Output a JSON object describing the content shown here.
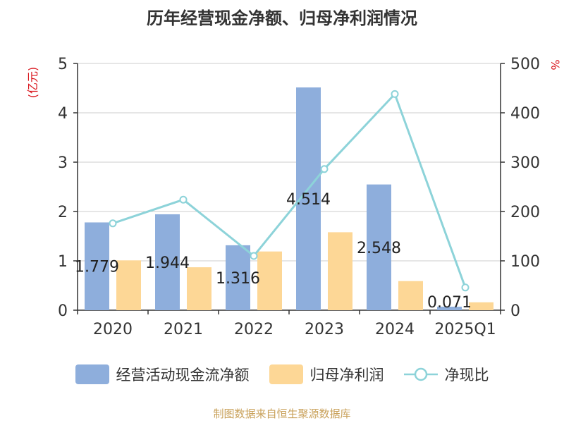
{
  "chart_data": {
    "type": "bar",
    "title": "历年经营现金净额、归母净利润情况",
    "y_left_unit": "(亿元)",
    "y_right_unit": "%",
    "categories": [
      "2020",
      "2021",
      "2022",
      "2023",
      "2024",
      "2025Q1"
    ],
    "ylim_left": [
      0,
      5
    ],
    "ylim_right": [
      0,
      500
    ],
    "yticks_left": [
      "0",
      "1",
      "2",
      "3",
      "4",
      "5"
    ],
    "yticks_right": [
      "0",
      "100",
      "200",
      "300",
      "400",
      "500"
    ],
    "series": [
      {
        "name": "经营活动现金流净额",
        "kind": "bar",
        "axis": "left",
        "color": "#8eaedc",
        "values": [
          1.779,
          1.944,
          1.316,
          4.514,
          2.548,
          0.071
        ],
        "labels": [
          "1.779",
          "1.944",
          "1.316",
          "4.514",
          "2.548",
          "0.071"
        ]
      },
      {
        "name": "归母净利润",
        "kind": "bar",
        "axis": "left",
        "color": "#fdd796",
        "values": [
          1.01,
          0.87,
          1.19,
          1.58,
          0.59,
          0.16
        ]
      },
      {
        "name": "净现比",
        "kind": "line",
        "axis": "right",
        "color": "#8dd3d9",
        "values": [
          176,
          224,
          110,
          286,
          438,
          46
        ]
      }
    ]
  },
  "footer": "制图数据来自恒生聚源数据库"
}
